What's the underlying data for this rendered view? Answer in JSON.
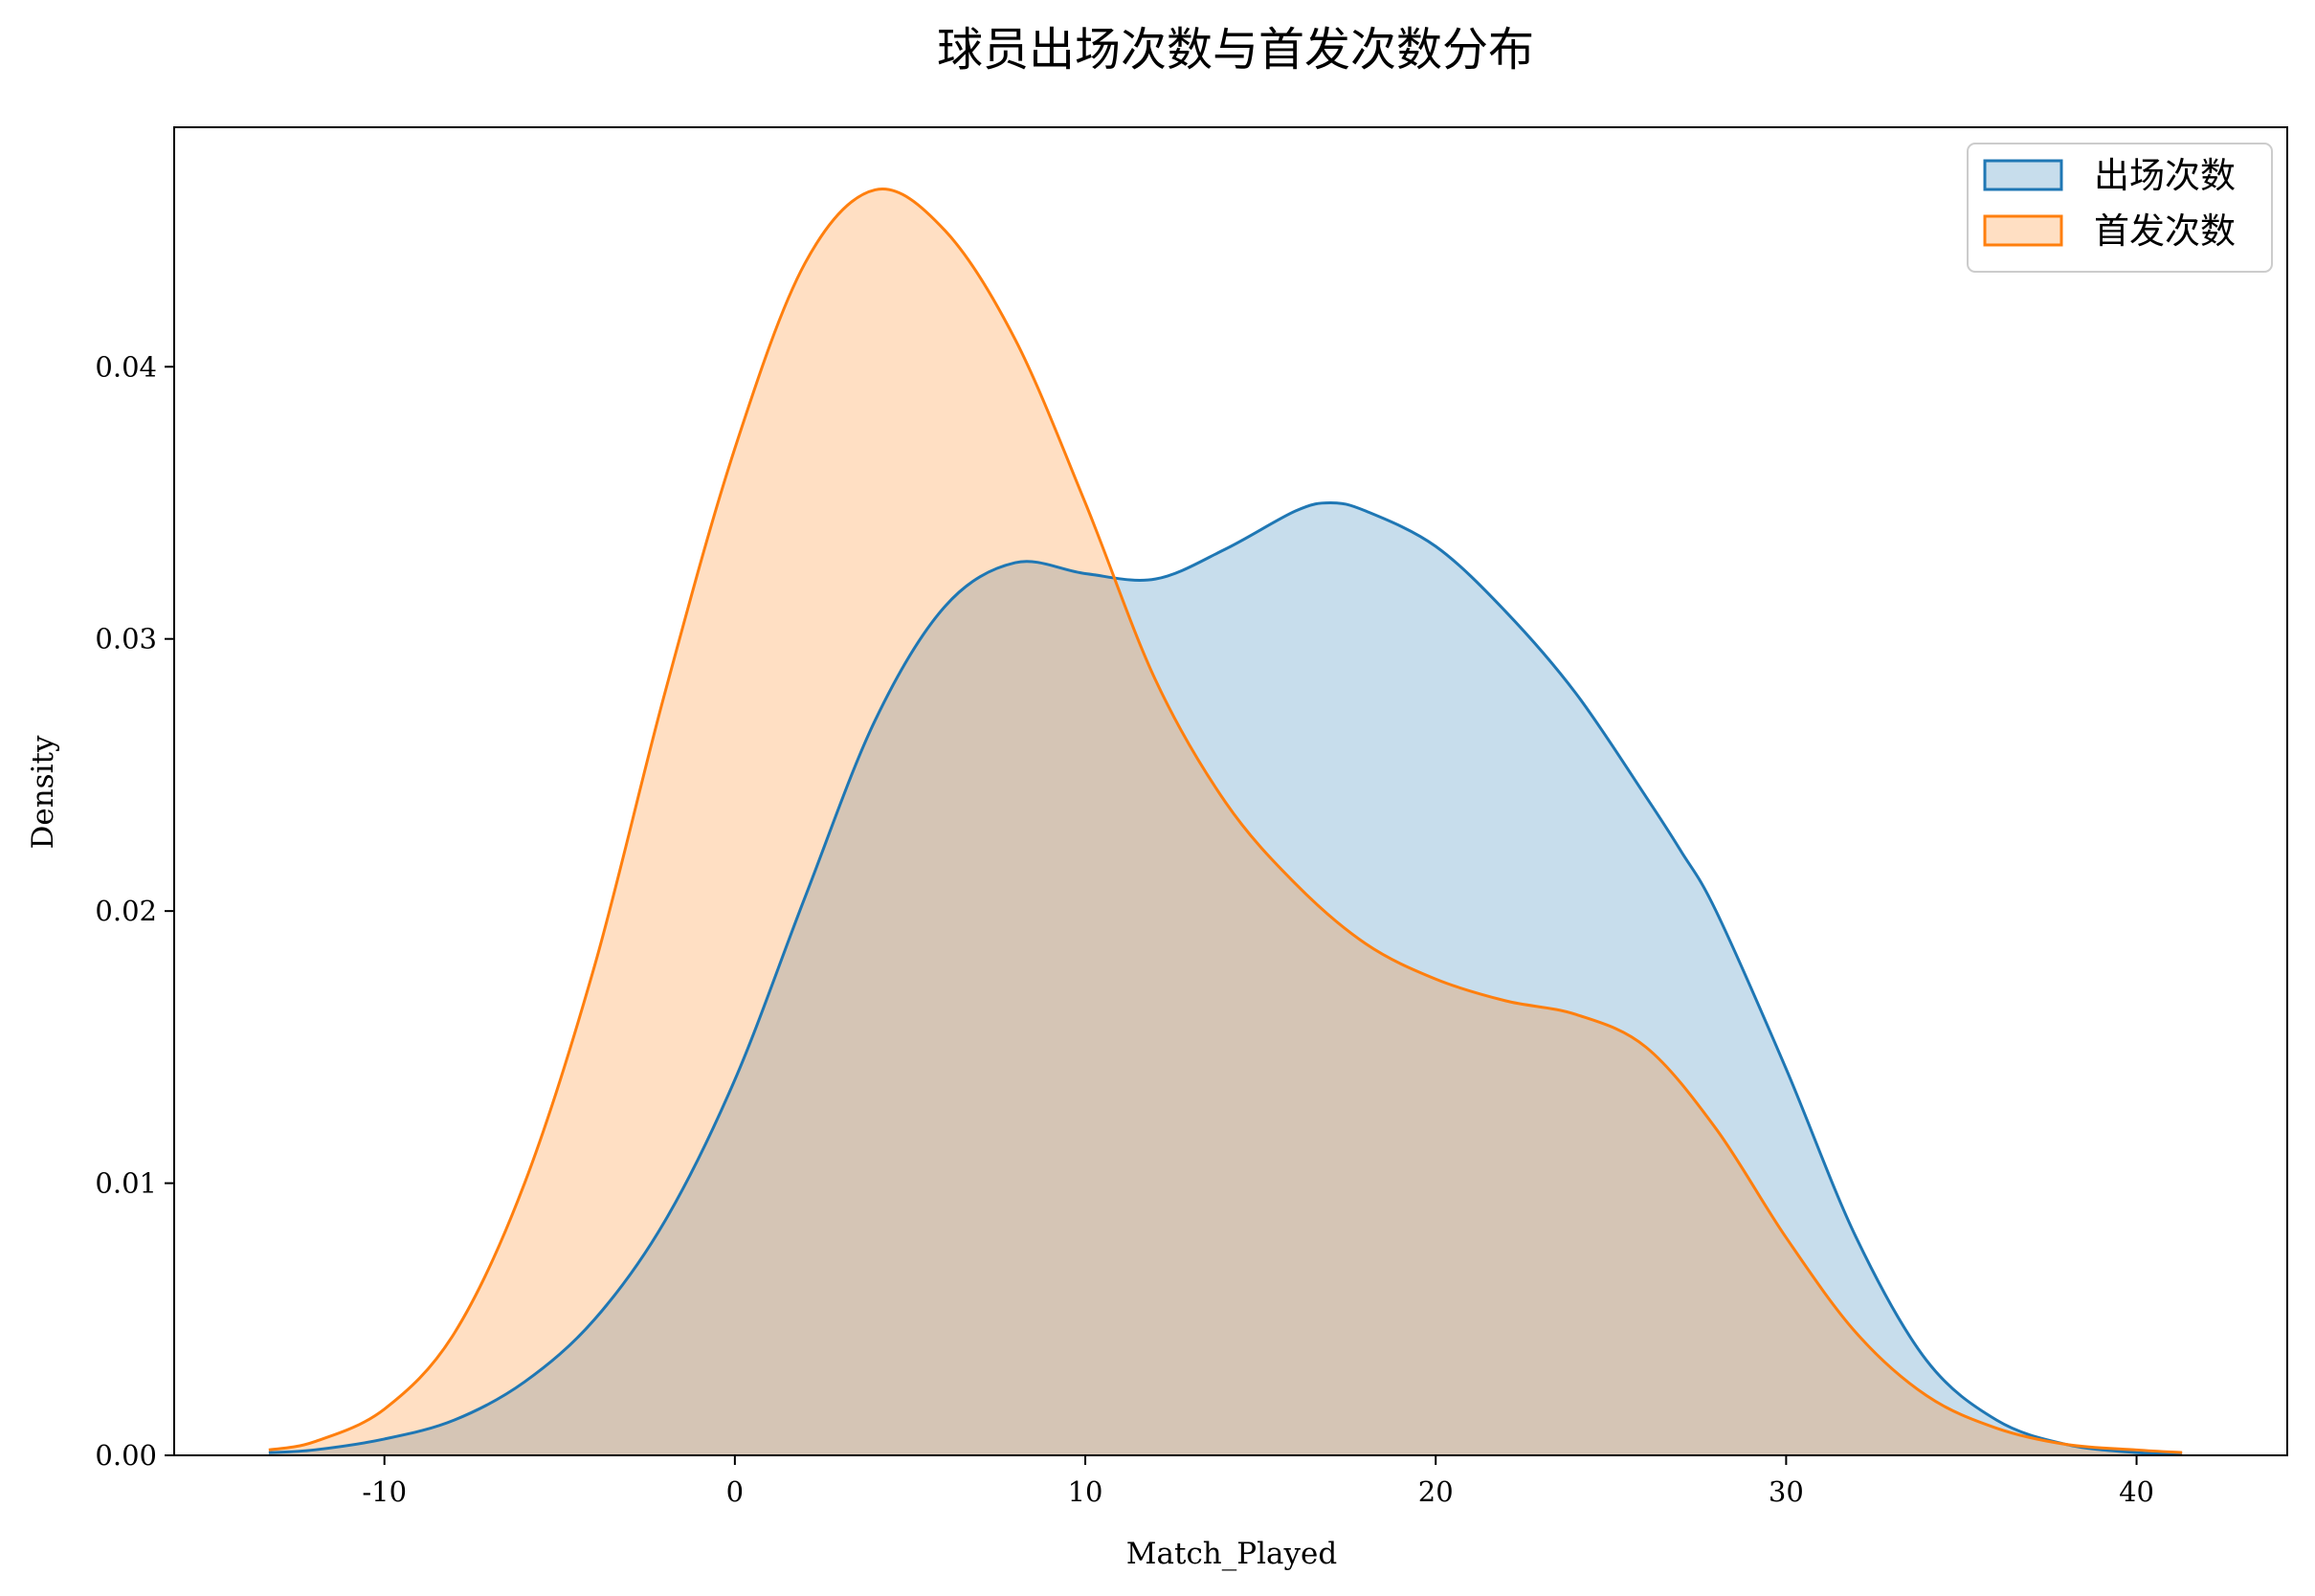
{
  "chart_data": {
    "type": "area",
    "title": "球员出场次数与首发次数分布",
    "xlabel": "Match_Played",
    "ylabel": "Density",
    "xlim": [
      -16,
      44.3
    ],
    "ylim": [
      0,
      0.0488
    ],
    "xticks": [
      -10,
      0,
      10,
      20,
      30,
      40
    ],
    "yticks": [
      0.0,
      0.01,
      0.02,
      0.03,
      0.04
    ],
    "xtick_labels": [
      "-10",
      "0",
      "10",
      "20",
      "30",
      "40"
    ],
    "ytick_labels": [
      "0.00",
      "0.01",
      "0.02",
      "0.03",
      "0.04"
    ],
    "grid": false,
    "legend_position": "top-right",
    "series": [
      {
        "name": "出场次数",
        "line_color": "#1f77b4",
        "fill_color": "#1f77b4",
        "fill_opacity": 0.25,
        "points": [
          [
            -13.3,
            0.0001
          ],
          [
            -12.0,
            0.0002
          ],
          [
            -10.0,
            0.0006
          ],
          [
            -8.0,
            0.0013
          ],
          [
            -6.0,
            0.0027
          ],
          [
            -4.0,
            0.005
          ],
          [
            -2.0,
            0.0086
          ],
          [
            0.0,
            0.0138
          ],
          [
            2.0,
            0.0205
          ],
          [
            4.0,
            0.027
          ],
          [
            6.0,
            0.0312
          ],
          [
            8.0,
            0.0328
          ],
          [
            10.0,
            0.0324
          ],
          [
            12.0,
            0.0322
          ],
          [
            14.0,
            0.0333
          ],
          [
            16.0,
            0.0347
          ],
          [
            17.0,
            0.035
          ],
          [
            18.0,
            0.0347
          ],
          [
            20.0,
            0.0334
          ],
          [
            22.0,
            0.031
          ],
          [
            24.0,
            0.028
          ],
          [
            26.0,
            0.0242
          ],
          [
            27.0,
            0.0222
          ],
          [
            28.0,
            0.02
          ],
          [
            30.0,
            0.0142
          ],
          [
            32.0,
            0.008
          ],
          [
            34.0,
            0.0035
          ],
          [
            36.0,
            0.0013
          ],
          [
            38.0,
            0.0004
          ],
          [
            40.0,
            0.0001
          ],
          [
            41.3,
            5e-05
          ]
        ]
      },
      {
        "name": "首发次数",
        "line_color": "#ff7f0e",
        "fill_color": "#ff7f0e",
        "fill_opacity": 0.25,
        "points": [
          [
            -13.3,
            0.0002
          ],
          [
            -12.0,
            0.0005
          ],
          [
            -10.0,
            0.0017
          ],
          [
            -8.0,
            0.0045
          ],
          [
            -6.0,
            0.01
          ],
          [
            -4.0,
            0.018
          ],
          [
            -2.0,
            0.028
          ],
          [
            0.0,
            0.037
          ],
          [
            2.0,
            0.0438
          ],
          [
            4.0,
            0.0465
          ],
          [
            6.0,
            0.045
          ],
          [
            8.0,
            0.041
          ],
          [
            10.0,
            0.035
          ],
          [
            12.0,
            0.0285
          ],
          [
            14.0,
            0.024
          ],
          [
            16.0,
            0.021
          ],
          [
            18.0,
            0.0188
          ],
          [
            20.0,
            0.0175
          ],
          [
            22.0,
            0.0167
          ],
          [
            24.0,
            0.0162
          ],
          [
            26.0,
            0.015
          ],
          [
            28.0,
            0.012
          ],
          [
            30.0,
            0.008
          ],
          [
            32.0,
            0.0045
          ],
          [
            34.0,
            0.0022
          ],
          [
            36.0,
            0.001
          ],
          [
            38.0,
            0.0004
          ],
          [
            40.0,
            0.0002
          ],
          [
            41.3,
            0.0001
          ]
        ]
      }
    ]
  }
}
